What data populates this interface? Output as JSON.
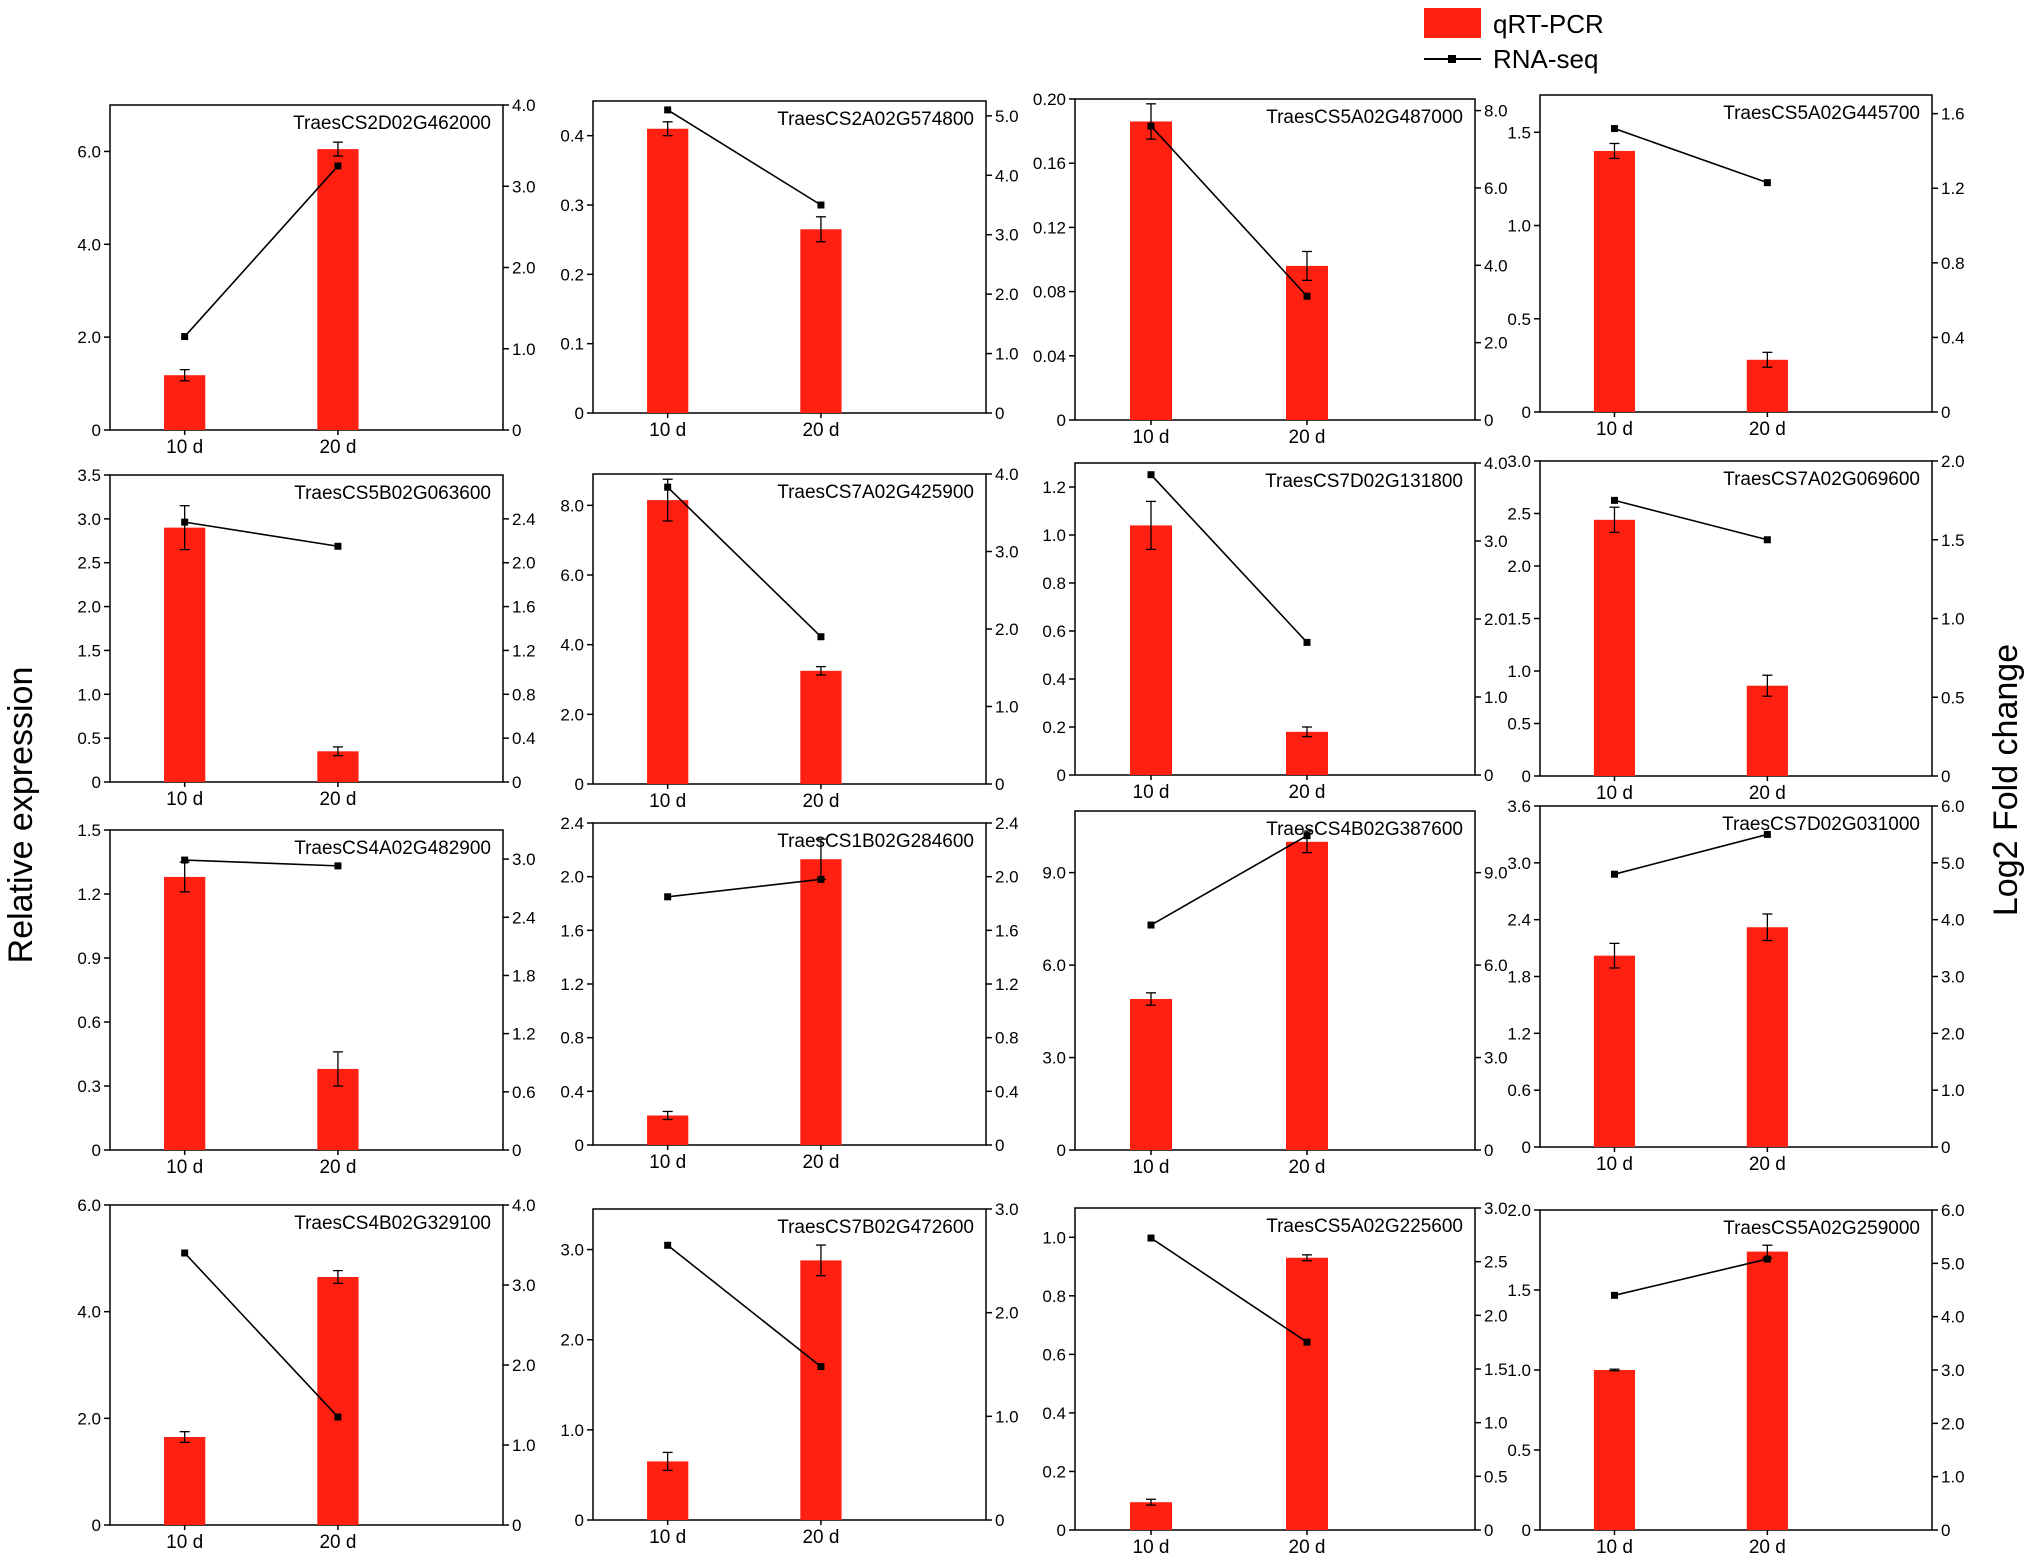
{
  "legend": {
    "bar_label": "qRT-PCR",
    "line_label": "RNA-seq"
  },
  "axis_titles": {
    "left": "Relative expression",
    "right": "Log2 Fold change"
  },
  "colors": {
    "bar": "#ff2012",
    "line": "#000000",
    "axis": "#000000"
  },
  "chart_data": [
    {
      "type": "bar",
      "title": "TraesCS2D02G462000",
      "categories": [
        "10 d",
        "20 d"
      ],
      "series": [
        {
          "name": "qRT-PCR",
          "axis": "left",
          "values": [
            1.18,
            6.05
          ],
          "errors": [
            0.12,
            0.15
          ]
        },
        {
          "name": "RNA-seq",
          "axis": "right",
          "type": "line",
          "values": [
            1.15,
            3.25
          ]
        }
      ],
      "ylim": [
        0,
        7
      ],
      "yticks": [
        0,
        2,
        4,
        6
      ],
      "yticklabels": [
        "0",
        "2.0",
        "4.0",
        "6.0"
      ],
      "y2lim": [
        0,
        4
      ],
      "y2ticks": [
        0,
        1,
        2,
        3,
        4
      ],
      "y2ticklabels": [
        "0",
        "1.0",
        "2.0",
        "3.0",
        "4.0"
      ]
    },
    {
      "type": "bar",
      "title": "TraesCS2A02G574800",
      "categories": [
        "10 d",
        "20 d"
      ],
      "series": [
        {
          "name": "qRT-PCR",
          "axis": "left",
          "values": [
            0.41,
            0.265
          ],
          "errors": [
            0.01,
            0.018
          ]
        },
        {
          "name": "RNA-seq",
          "axis": "right",
          "type": "line",
          "values": [
            5.1,
            3.5
          ]
        }
      ],
      "ylim": [
        0,
        0.45
      ],
      "yticks": [
        0,
        0.1,
        0.2,
        0.3,
        0.4
      ],
      "yticklabels": [
        "0",
        "0.1",
        "0.2",
        "0.3",
        "0.4"
      ],
      "y2lim": [
        0,
        5.25
      ],
      "y2ticks": [
        0,
        1,
        2,
        3,
        4,
        5
      ],
      "y2ticklabels": [
        "0",
        "1.0",
        "2.0",
        "3.0",
        "4.0",
        "5.0"
      ]
    },
    {
      "type": "bar",
      "title": "TraesCS5A02G487000",
      "categories": [
        "10 d",
        "20 d"
      ],
      "series": [
        {
          "name": "qRT-PCR",
          "axis": "left",
          "values": [
            0.186,
            0.096
          ],
          "errors": [
            0.011,
            0.009
          ]
        },
        {
          "name": "RNA-seq",
          "axis": "right",
          "type": "line",
          "values": [
            7.6,
            3.2
          ]
        }
      ],
      "ylim": [
        0,
        0.2
      ],
      "yticks": [
        0,
        0.04,
        0.08,
        0.12,
        0.16,
        0.2
      ],
      "yticklabels": [
        "0",
        "0.04",
        "0.08",
        "0.12",
        "0.16",
        "0.20"
      ],
      "y2lim": [
        0,
        8.3
      ],
      "y2ticks": [
        0,
        2,
        4,
        6,
        8
      ],
      "y2ticklabels": [
        "0",
        "2.0",
        "4.0",
        "6.0",
        "8.0"
      ]
    },
    {
      "type": "bar",
      "title": "TraesCS5A02G445700",
      "categories": [
        "10 d",
        "20 d"
      ],
      "series": [
        {
          "name": "qRT-PCR",
          "axis": "left",
          "values": [
            1.4,
            0.28
          ],
          "errors": [
            0.04,
            0.04
          ]
        },
        {
          "name": "RNA-seq",
          "axis": "right",
          "type": "line",
          "values": [
            1.52,
            1.23
          ]
        }
      ],
      "ylim": [
        0,
        1.7
      ],
      "yticks": [
        0,
        0.5,
        1,
        1.5
      ],
      "yticklabels": [
        "0",
        "0.5",
        "1.0",
        "1.5"
      ],
      "y2lim": [
        0,
        1.7
      ],
      "y2ticks": [
        0,
        0.4,
        0.8,
        1.2,
        1.6
      ],
      "y2ticklabels": [
        "0",
        "0.4",
        "0.8",
        "1.2",
        "1.6"
      ]
    },
    {
      "type": "bar",
      "title": "TraesCS5B02G063600",
      "categories": [
        "10 d",
        "20 d"
      ],
      "series": [
        {
          "name": "qRT-PCR",
          "axis": "left",
          "values": [
            2.9,
            0.35
          ],
          "errors": [
            0.25,
            0.05
          ]
        },
        {
          "name": "RNA-seq",
          "axis": "right",
          "type": "line",
          "values": [
            2.37,
            2.15
          ]
        }
      ],
      "ylim": [
        0,
        3.5
      ],
      "yticks": [
        0,
        0.5,
        1,
        1.5,
        2,
        2.5,
        3,
        3.5
      ],
      "yticklabels": [
        "0",
        "0.5",
        "1.0",
        "1.5",
        "2.0",
        "2.5",
        "3.0",
        "3.5"
      ],
      "y2lim": [
        0,
        2.8
      ],
      "y2ticks": [
        0,
        0.4,
        0.8,
        1.2,
        1.6,
        2.0,
        2.4
      ],
      "y2ticklabels": [
        "0",
        "0.4",
        "0.8",
        "1.2",
        "1.6",
        "2.0",
        "2.4"
      ]
    },
    {
      "type": "bar",
      "title": "TraesCS7A02G425900",
      "categories": [
        "10 d",
        "20 d"
      ],
      "series": [
        {
          "name": "qRT-PCR",
          "axis": "left",
          "values": [
            8.15,
            3.25
          ],
          "errors": [
            0.6,
            0.12
          ]
        },
        {
          "name": "RNA-seq",
          "axis": "right",
          "type": "line",
          "values": [
            3.83,
            1.9
          ]
        }
      ],
      "ylim": [
        0,
        8.9
      ],
      "yticks": [
        0,
        2,
        4,
        6,
        8
      ],
      "yticklabels": [
        "0",
        "2.0",
        "4.0",
        "6.0",
        "8.0"
      ],
      "y2lim": [
        0,
        4
      ],
      "y2ticks": [
        0,
        1,
        2,
        3,
        4
      ],
      "y2ticklabels": [
        "0",
        "1.0",
        "2.0",
        "3.0",
        "4.0"
      ]
    },
    {
      "type": "bar",
      "title": "TraesCS7D02G131800",
      "categories": [
        "10 d",
        "20 d"
      ],
      "series": [
        {
          "name": "qRT-PCR",
          "axis": "left",
          "values": [
            1.04,
            0.18
          ],
          "errors": [
            0.1,
            0.02
          ]
        },
        {
          "name": "RNA-seq",
          "axis": "right",
          "type": "line",
          "values": [
            3.85,
            1.7
          ]
        }
      ],
      "ylim": [
        0,
        1.3
      ],
      "yticks": [
        0,
        0.2,
        0.4,
        0.6,
        0.8,
        1.0,
        1.2
      ],
      "yticklabels": [
        "0",
        "0.2",
        "0.4",
        "0.6",
        "0.8",
        "1.0",
        "1.2"
      ],
      "y2lim": [
        0,
        4
      ],
      "y2ticks": [
        0,
        1,
        2,
        3,
        4
      ],
      "y2ticklabels": [
        "0",
        "1.0",
        "2.0",
        "3.0",
        "4.0"
      ]
    },
    {
      "type": "bar",
      "title": "TraesCS7A02G069600",
      "categories": [
        "10 d",
        "20 d"
      ],
      "series": [
        {
          "name": "qRT-PCR",
          "axis": "left",
          "values": [
            2.44,
            0.86
          ],
          "errors": [
            0.12,
            0.1
          ]
        },
        {
          "name": "RNA-seq",
          "axis": "right",
          "type": "line",
          "values": [
            1.75,
            1.5
          ]
        }
      ],
      "ylim": [
        0,
        3
      ],
      "yticks": [
        0,
        0.5,
        1,
        1.5,
        2,
        2.5,
        3
      ],
      "yticklabels": [
        "0",
        "0.5",
        "1.0",
        "1.5",
        "2.0",
        "2.5",
        "3.0"
      ],
      "y2lim": [
        0,
        2
      ],
      "y2ticks": [
        0,
        0.5,
        1,
        1.5,
        2
      ],
      "y2ticklabels": [
        "0",
        "0.5",
        "1.0",
        "1.5",
        "2.0"
      ]
    },
    {
      "type": "bar",
      "title": "TraesCS4A02G482900",
      "categories": [
        "10 d",
        "20 d"
      ],
      "series": [
        {
          "name": "qRT-PCR",
          "axis": "left",
          "values": [
            1.28,
            0.38
          ],
          "errors": [
            0.07,
            0.08
          ]
        },
        {
          "name": "RNA-seq",
          "axis": "right",
          "type": "line",
          "values": [
            2.99,
            2.93
          ]
        }
      ],
      "ylim": [
        0,
        1.5
      ],
      "yticks": [
        0,
        0.3,
        0.6,
        0.9,
        1.2,
        1.5
      ],
      "yticklabels": [
        "0",
        "0.3",
        "0.6",
        "0.9",
        "1.2",
        "1.5"
      ],
      "y2lim": [
        0,
        3.3
      ],
      "y2ticks": [
        0,
        0.6,
        1.2,
        1.8,
        2.4,
        3.0
      ],
      "y2ticklabels": [
        "0",
        "0.6",
        "1.2",
        "1.8",
        "2.4",
        "3.0"
      ]
    },
    {
      "type": "bar",
      "title": "TraesCS1B02G284600",
      "categories": [
        "10 d",
        "20 d"
      ],
      "series": [
        {
          "name": "qRT-PCR",
          "axis": "left",
          "values": [
            0.22,
            2.13
          ],
          "errors": [
            0.03,
            0.15
          ]
        },
        {
          "name": "RNA-seq",
          "axis": "right",
          "type": "line",
          "values": [
            1.85,
            1.98
          ]
        }
      ],
      "ylim": [
        0,
        2.4
      ],
      "yticks": [
        0,
        0.4,
        0.8,
        1.2,
        1.6,
        2.0,
        2.4
      ],
      "yticklabels": [
        "0",
        "0.4",
        "0.8",
        "1.2",
        "1.6",
        "2.0",
        "2.4"
      ],
      "y2lim": [
        0,
        2.4
      ],
      "y2ticks": [
        0,
        0.4,
        0.8,
        1.2,
        1.6,
        2.0,
        2.4
      ],
      "y2ticklabels": [
        "0",
        "0.4",
        "0.8",
        "1.2",
        "1.6",
        "2.0",
        "2.4"
      ]
    },
    {
      "type": "bar",
      "title": "TraesCS4B02G387600",
      "categories": [
        "10 d",
        "20 d"
      ],
      "series": [
        {
          "name": "qRT-PCR",
          "axis": "left",
          "values": [
            4.9,
            10.0
          ],
          "errors": [
            0.2,
            0.35
          ]
        },
        {
          "name": "RNA-seq",
          "axis": "right",
          "type": "line",
          "values": [
            7.3,
            10.2
          ]
        }
      ],
      "ylim": [
        0,
        11
      ],
      "yticks": [
        0,
        3,
        6,
        9
      ],
      "yticklabels": [
        "0",
        "3.0",
        "6.0",
        "9.0"
      ],
      "y2lim": [
        0,
        11
      ],
      "y2ticks": [
        0,
        3,
        6,
        9
      ],
      "y2ticklabels": [
        "0",
        "3.0",
        "6.0",
        "9.0"
      ]
    },
    {
      "type": "bar",
      "title": "TraesCS7D02G031000",
      "categories": [
        "10 d",
        "20 d"
      ],
      "series": [
        {
          "name": "qRT-PCR",
          "axis": "left",
          "values": [
            2.02,
            2.32
          ],
          "errors": [
            0.13,
            0.14
          ]
        },
        {
          "name": "RNA-seq",
          "axis": "right",
          "type": "line",
          "values": [
            4.8,
            5.5
          ]
        }
      ],
      "ylim": [
        0,
        3.6
      ],
      "yticks": [
        0,
        0.6,
        1.2,
        1.8,
        2.4,
        3.0,
        3.6
      ],
      "yticklabels": [
        "0",
        "0.6",
        "1.2",
        "1.8",
        "2.4",
        "3.0",
        "3.6"
      ],
      "y2lim": [
        0,
        6
      ],
      "y2ticks": [
        0,
        1,
        2,
        3,
        4,
        5,
        6
      ],
      "y2ticklabels": [
        "0",
        "1.0",
        "2.0",
        "3.0",
        "4.0",
        "5.0",
        "6.0"
      ]
    },
    {
      "type": "bar",
      "title": "TraesCS4B02G329100",
      "categories": [
        "10 d",
        "20 d"
      ],
      "series": [
        {
          "name": "qRT-PCR",
          "axis": "left",
          "values": [
            1.65,
            4.65
          ],
          "errors": [
            0.1,
            0.12
          ]
        },
        {
          "name": "RNA-seq",
          "axis": "right",
          "type": "line",
          "values": [
            3.4,
            1.35
          ]
        }
      ],
      "ylim": [
        0,
        6
      ],
      "yticks": [
        0,
        2,
        4,
        6
      ],
      "yticklabels": [
        "0",
        "2.0",
        "4.0",
        "6.0"
      ],
      "y2lim": [
        0,
        4
      ],
      "y2ticks": [
        0,
        1,
        2,
        3,
        4
      ],
      "y2ticklabels": [
        "0",
        "1.0",
        "2.0",
        "3.0",
        "4.0"
      ]
    },
    {
      "type": "bar",
      "title": "TraesCS7B02G472600",
      "categories": [
        "10 d",
        "20 d"
      ],
      "series": [
        {
          "name": "qRT-PCR",
          "axis": "left",
          "values": [
            0.65,
            2.88
          ],
          "errors": [
            0.1,
            0.17
          ]
        },
        {
          "name": "RNA-seq",
          "axis": "right",
          "type": "line",
          "values": [
            2.65,
            1.48
          ]
        }
      ],
      "ylim": [
        0,
        3.45
      ],
      "yticks": [
        0,
        1,
        2,
        3
      ],
      "yticklabels": [
        "0",
        "1.0",
        "2.0",
        "3.0"
      ],
      "y2lim": [
        0,
        3
      ],
      "y2ticks": [
        0,
        1,
        2,
        3
      ],
      "y2ticklabels": [
        "0",
        "1.0",
        "2.0",
        "3.0"
      ]
    },
    {
      "type": "bar",
      "title": "TraesCS5A02G225600",
      "categories": [
        "10 d",
        "20 d"
      ],
      "series": [
        {
          "name": "qRT-PCR",
          "axis": "left",
          "values": [
            0.095,
            0.93
          ],
          "errors": [
            0.01,
            0.01
          ]
        },
        {
          "name": "RNA-seq",
          "axis": "right",
          "type": "line",
          "values": [
            2.72,
            1.75
          ]
        }
      ],
      "ylim": [
        0,
        1.1
      ],
      "yticks": [
        0,
        0.2,
        0.4,
        0.6,
        0.8,
        1.0
      ],
      "yticklabels": [
        "0",
        "0.2",
        "0.4",
        "0.6",
        "0.8",
        "1.0"
      ],
      "y2lim": [
        0,
        3
      ],
      "y2ticks": [
        0,
        0.5,
        1,
        1.5,
        2,
        2.5,
        3
      ],
      "y2ticklabels": [
        "0",
        "0.5",
        "1.0",
        "1.5",
        "2.0",
        "2.5",
        "3.0"
      ]
    },
    {
      "type": "bar",
      "title": "TraesCS5A02G259000",
      "categories": [
        "10 d",
        "20 d"
      ],
      "series": [
        {
          "name": "qRT-PCR",
          "axis": "left",
          "values": [
            1.0,
            1.74
          ],
          "errors": [
            0.005,
            0.04
          ]
        },
        {
          "name": "RNA-seq",
          "axis": "right",
          "type": "line",
          "values": [
            4.4,
            5.08
          ]
        }
      ],
      "ylim": [
        0,
        2
      ],
      "yticks": [
        0,
        0.5,
        1,
        1.5,
        2
      ],
      "yticklabels": [
        "0",
        "0.5",
        "1.0",
        "1.5",
        "2.0"
      ],
      "y2lim": [
        0,
        6
      ],
      "y2ticks": [
        0,
        1,
        2,
        3,
        4,
        5,
        6
      ],
      "y2ticklabels": [
        "0",
        "1.0",
        "2.0",
        "3.0",
        "4.0",
        "5.0",
        "6.0"
      ]
    }
  ]
}
